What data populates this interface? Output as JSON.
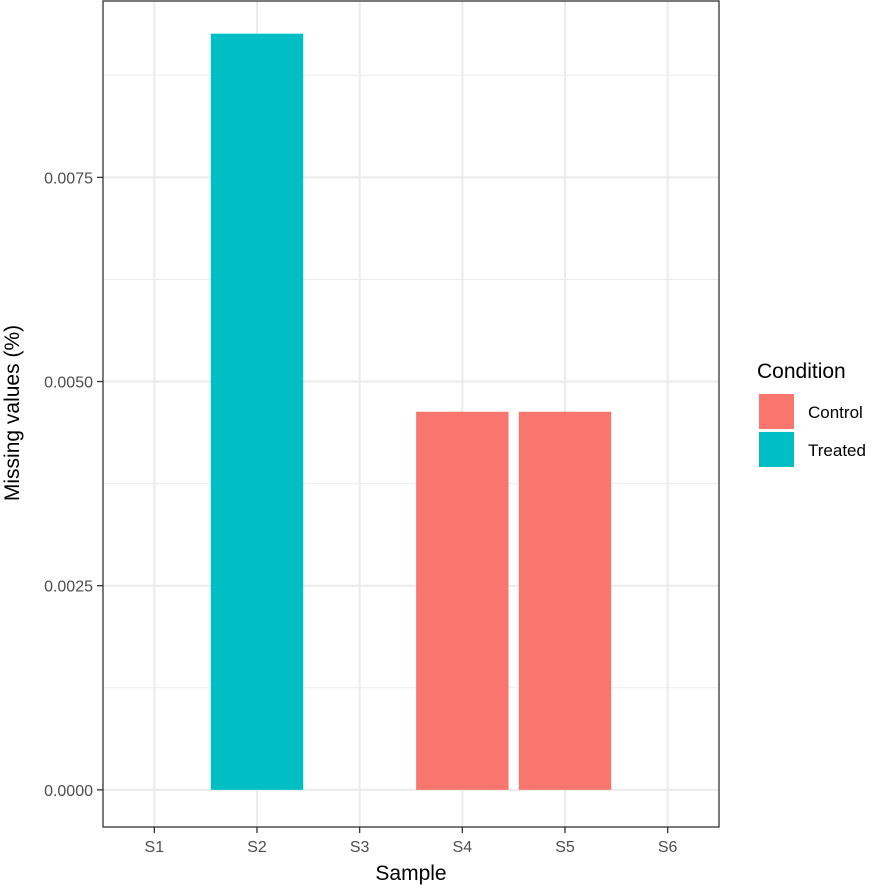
{
  "chart_data": {
    "type": "bar",
    "title": "",
    "xlabel": "Sample",
    "ylabel": "Missing values (%)",
    "categories": [
      "S1",
      "S2",
      "S3",
      "S4",
      "S5",
      "S6"
    ],
    "values": [
      0,
      0.00926,
      0,
      0.00463,
      0.00463,
      0
    ],
    "condition": [
      null,
      "Treated",
      null,
      "Control",
      "Control",
      null
    ],
    "ylim": [
      -0.000455,
      0.00966
    ],
    "yticks": [
      0,
      0.0025,
      0.005,
      0.0075
    ],
    "ytick_labels": [
      "0.0000",
      "0.0025",
      "0.0050",
      "0.0075"
    ],
    "grid": true,
    "legend": {
      "title": "Condition",
      "position": "right",
      "entries": [
        {
          "label": "Control",
          "color": "#F8766D"
        },
        {
          "label": "Treated",
          "color": "#00BFC4"
        }
      ]
    }
  }
}
